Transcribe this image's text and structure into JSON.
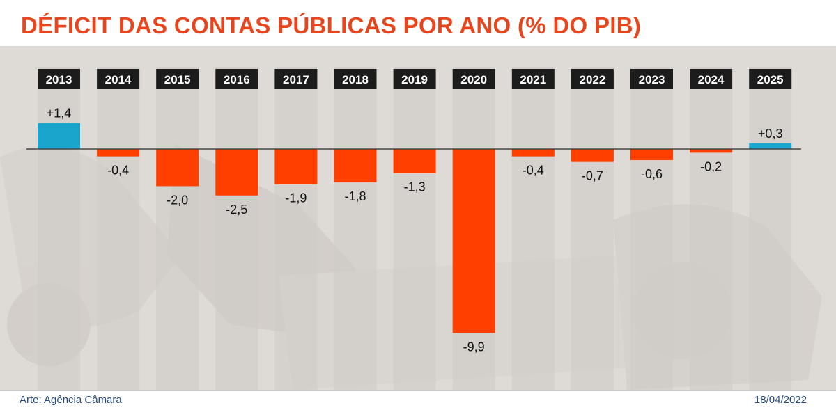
{
  "title": "DÉFICIT DAS CONTAS PÚBLICAS POR ANO (% DO PIB)",
  "footer": {
    "credit": "Arte: Agência Câmara",
    "date": "18/04/2022"
  },
  "colors": {
    "title": "#e8451c",
    "positive": "#1aa6cc",
    "negative": "#ff3f00",
    "column": "#cfcbc7",
    "year_label_bg": "#1c1c1c",
    "year_label_text": "#ffffff",
    "footer_text": "#274a7d"
  },
  "chart_data": {
    "type": "bar",
    "title": "DÉFICIT DAS CONTAS PÚBLICAS POR ANO (% DO PIB)",
    "categories": [
      "2013",
      "2014",
      "2015",
      "2016",
      "2017",
      "2018",
      "2019",
      "2020",
      "2021",
      "2022",
      "2023",
      "2024",
      "2025"
    ],
    "values": [
      1.4,
      -0.4,
      -2.0,
      -2.5,
      -1.9,
      -1.8,
      -1.3,
      -9.9,
      -0.4,
      -0.7,
      -0.6,
      -0.2,
      0.3
    ],
    "data_labels": [
      "+1,4",
      "-0,4",
      "-2,0",
      "-2,5",
      "-1,9",
      "-1,8",
      "-1,3",
      "-9,9",
      "-0,4",
      "-0,7",
      "-0,6",
      "-0,2",
      "+0,3"
    ],
    "xlabel": "",
    "ylabel": "",
    "ylim": [
      -9.9,
      1.4
    ],
    "grid": false,
    "legend": "none"
  }
}
